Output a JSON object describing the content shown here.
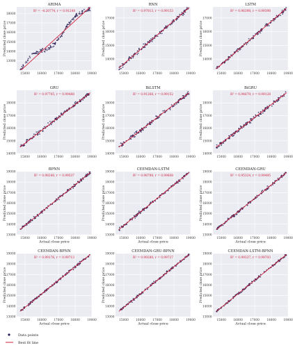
{
  "figure": {
    "legend": {
      "items": [
        {
          "label": "Data points",
          "marker": "dot",
          "color": "#2b1e52"
        },
        {
          "label": "Best fit line",
          "marker": "line",
          "color": "#d0213b"
        }
      ]
    },
    "colors": {
      "panel_bg": "#ebebf2",
      "grid": "#ffffff",
      "points": "#2b1e52",
      "fit": "#d0213b",
      "stats": "#d0213b"
    }
  },
  "chart_data": [
    {
      "type": "scatter",
      "title": "ARIMA",
      "stats": "R² = –4.20774, r = 0.91248",
      "xlabel": "",
      "ylabel": "Predicted close price",
      "xlim": [
        14500,
        19000
      ],
      "ylim": [
        12000,
        18700
      ],
      "xticks": [
        15000,
        16000,
        17000,
        18000,
        19000
      ],
      "yticks": [
        13000,
        14000,
        15000,
        16000,
        17000,
        18000
      ],
      "fit": {
        "x": [
          14700,
          18900
        ],
        "y": [
          11900,
          18700
        ]
      },
      "points": {
        "x_range": [
          14700,
          18900
        ],
        "pattern": "arima",
        "noise": 150
      }
    },
    {
      "type": "scatter",
      "title": "RNN",
      "stats": "R² = 0.97013, r = 0.99153",
      "xlabel": "",
      "ylabel": "Predicted close price",
      "xlim": [
        14500,
        19000
      ],
      "ylim": [
        13200,
        17800
      ],
      "xticks": [
        15000,
        16000,
        17000,
        18000,
        19000
      ],
      "yticks": [
        14000,
        15000,
        16000,
        17000
      ],
      "fit": {
        "x": [
          14700,
          18900
        ],
        "y": [
          13350,
          17750
        ]
      },
      "points": {
        "x_range": [
          14700,
          18900
        ],
        "pattern": "linear",
        "noise": 110
      }
    },
    {
      "type": "scatter",
      "title": "LSTM",
      "stats": "R² = 0.96398, r = 0.99398",
      "xlabel": "",
      "ylabel": "Predicted close price",
      "xlim": [
        14500,
        19000
      ],
      "ylim": [
        13200,
        17800
      ],
      "xticks": [
        15000,
        16000,
        17000,
        18000,
        19000
      ],
      "yticks": [
        14000,
        15000,
        16000,
        17000
      ],
      "fit": {
        "x": [
          14700,
          18900
        ],
        "y": [
          13300,
          17700
        ]
      },
      "points": {
        "x_range": [
          14700,
          18900
        ],
        "pattern": "linear",
        "noise": 90
      }
    },
    {
      "type": "scatter",
      "title": "GRU",
      "stats": "R² = 0.97705, r = 0.99488",
      "xlabel": "",
      "ylabel": "Predicted close price",
      "xlim": [
        14500,
        19000
      ],
      "ylim": [
        14000,
        19000
      ],
      "xticks": [
        15000,
        16000,
        17000,
        18000,
        19000
      ],
      "yticks": [
        14000,
        15000,
        16000,
        17000,
        18000
      ],
      "fit": {
        "x": [
          14700,
          18900
        ],
        "y": [
          14500,
          18800
        ]
      },
      "points": {
        "x_range": [
          14700,
          18900
        ],
        "pattern": "linear",
        "noise": 110
      }
    },
    {
      "type": "scatter",
      "title": "BiLSTM",
      "stats": "R² = 0.91268, r = 0.99152",
      "xlabel": "",
      "ylabel": "Predicted close price",
      "xlim": [
        14500,
        19000
      ],
      "ylim": [
        14000,
        19000
      ],
      "xticks": [
        15000,
        16000,
        17000,
        18000,
        19000
      ],
      "yticks": [
        14000,
        15000,
        16000,
        17000,
        18000
      ],
      "fit": {
        "x": [
          14700,
          18900
        ],
        "y": [
          14500,
          18800
        ]
      },
      "points": {
        "x_range": [
          14700,
          18900
        ],
        "pattern": "linear",
        "noise": 110
      }
    },
    {
      "type": "scatter",
      "title": "BiGRU",
      "stats": "R² = 0.94679, r = 0.99128",
      "xlabel": "",
      "ylabel": "Predicted close price",
      "xlim": [
        14500,
        19000
      ],
      "ylim": [
        14000,
        19000
      ],
      "xticks": [
        15000,
        16000,
        17000,
        18000,
        19000
      ],
      "yticks": [
        14000,
        15000,
        16000,
        17000,
        18000
      ],
      "fit": {
        "x": [
          14700,
          18900
        ],
        "y": [
          14500,
          18800
        ]
      },
      "points": {
        "x_range": [
          14700,
          18900
        ],
        "pattern": "linear",
        "noise": 110
      }
    },
    {
      "type": "scatter",
      "title": "BPNN",
      "stats": "R² = 0.98240, r = 0.99537",
      "xlabel": "Actual close price",
      "ylabel": "Predicted close price",
      "xlim": [
        14500,
        19000
      ],
      "ylim": [
        13000,
        19000
      ],
      "xticks": [
        15000,
        16000,
        17000,
        18000,
        19000
      ],
      "yticks": [
        13000,
        14000,
        15000,
        16000,
        17000,
        18000,
        19000
      ],
      "fit": {
        "x": [
          14700,
          18900
        ],
        "y": [
          13500,
          18900
        ]
      },
      "points": {
        "x_range": [
          14700,
          18900
        ],
        "pattern": "linear",
        "noise": 110
      }
    },
    {
      "type": "scatter",
      "title": "CEEMDAN-LSTM",
      "stats": "R² = 0.98798, r = 0.99608",
      "xlabel": "Actual close price",
      "ylabel": "Predicted close price",
      "xlim": [
        14500,
        19000
      ],
      "ylim": [
        13000,
        19000
      ],
      "xticks": [
        15000,
        16000,
        17000,
        18000,
        19000
      ],
      "yticks": [
        13000,
        14000,
        15000,
        16000,
        17000,
        18000,
        19000
      ],
      "fit": {
        "x": [
          14700,
          18900
        ],
        "y": [
          13500,
          18900
        ]
      },
      "points": {
        "x_range": [
          14700,
          18900
        ],
        "pattern": "linear",
        "noise": 90
      }
    },
    {
      "type": "scatter",
      "title": "CEEMDAN-GRU",
      "stats": "R² = 0.95324, r = 0.99495",
      "xlabel": "Actual close price",
      "ylabel": "Predicted close price",
      "xlim": [
        14500,
        19000
      ],
      "ylim": [
        13000,
        19000
      ],
      "xticks": [
        15000,
        16000,
        17000,
        18000,
        19000
      ],
      "yticks": [
        13000,
        14000,
        15000,
        16000,
        17000,
        18000,
        19000
      ],
      "fit": {
        "x": [
          14700,
          18900
        ],
        "y": [
          13500,
          18900
        ]
      },
      "points": {
        "x_range": [
          14700,
          18900
        ],
        "pattern": "linear",
        "noise": 90
      }
    },
    {
      "type": "scatter",
      "title": "CEEMDAN-BPNN",
      "stats": "R² = 0.99176, r = 0.99713",
      "xlabel": "Actual close price",
      "ylabel": "Predicted close price",
      "xlim": [
        14500,
        19000
      ],
      "ylim": [
        13000,
        19000
      ],
      "xticks": [
        15000,
        16000,
        17000,
        18000,
        19000
      ],
      "yticks": [
        13000,
        14000,
        15000,
        16000,
        17000,
        18000,
        19000
      ],
      "fit": {
        "x": [
          14700,
          18900
        ],
        "y": [
          13500,
          18900
        ]
      },
      "points": {
        "x_range": [
          14700,
          18900
        ],
        "pattern": "linear",
        "noise": 80
      }
    },
    {
      "type": "scatter",
      "title": "CEEMDAN-GRU-BPNN",
      "stats": "R² = 0.99280, r = 0.99727",
      "xlabel": "Actual close price",
      "ylabel": "Predicted close price",
      "xlim": [
        14500,
        19000
      ],
      "ylim": [
        13000,
        19000
      ],
      "xticks": [
        15000,
        16000,
        17000,
        18000,
        19000
      ],
      "yticks": [
        13000,
        14000,
        15000,
        16000,
        17000,
        18000,
        19000
      ],
      "fit": {
        "x": [
          14700,
          18900
        ],
        "y": [
          13500,
          18900
        ]
      },
      "points": {
        "x_range": [
          14700,
          18900
        ],
        "pattern": "linear",
        "noise": 75
      }
    },
    {
      "type": "scatter",
      "title": "CEEMDAN-LSTM-BPNN",
      "stats": "R² = 0.99337, r = 0.99703",
      "xlabel": "Actual close price",
      "ylabel": "Predicted close price",
      "xlim": [
        14500,
        19000
      ],
      "ylim": [
        13000,
        19000
      ],
      "xticks": [
        15000,
        16000,
        17000,
        18000,
        19000
      ],
      "yticks": [
        13000,
        14000,
        15000,
        16000,
        17000,
        18000,
        19000
      ],
      "fit": {
        "x": [
          14700,
          18900
        ],
        "y": [
          13500,
          18900
        ]
      },
      "points": {
        "x_range": [
          14700,
          18900
        ],
        "pattern": "linear",
        "noise": 75
      }
    }
  ]
}
